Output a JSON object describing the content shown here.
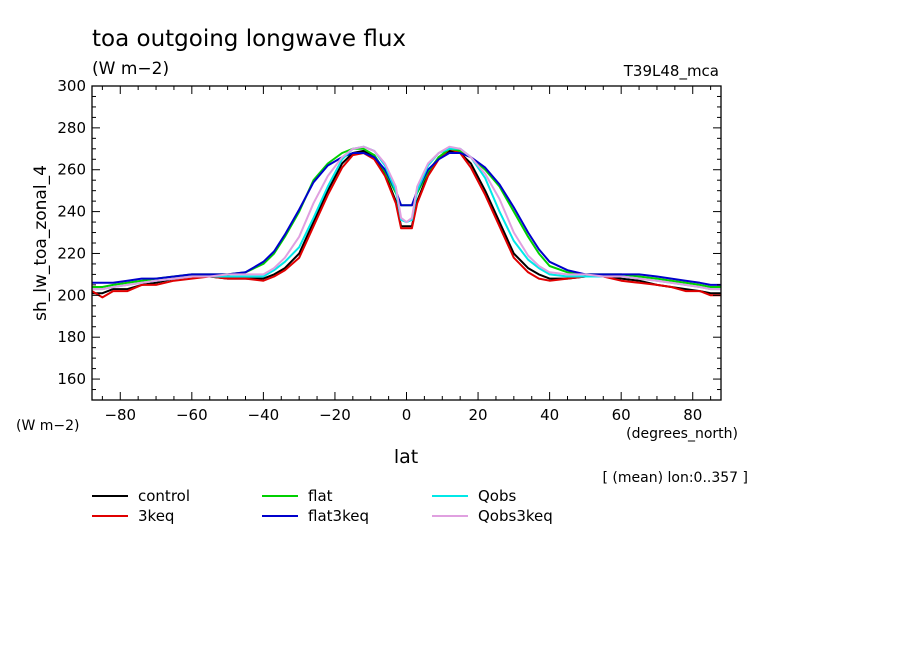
{
  "chart_data": {
    "type": "line",
    "title": "toa outgoing longwave flux",
    "units": "(W m−2)",
    "model_tag": "T39L48_mca",
    "ylabel": "sh_lw_toa_zonal_4",
    "ylabel_units": "(W m−2)",
    "xlabel": "lat",
    "xlabel_units": "(degrees_north)",
    "annotation": "[ (mean) lon:0..357 ]",
    "xlim": [
      -87.9,
      87.9
    ],
    "ylim": [
      150,
      300
    ],
    "x_ticks": [
      -80,
      -60,
      -40,
      -20,
      0,
      20,
      40,
      60,
      80
    ],
    "x_tick_labels": [
      "−80",
      "−60",
      "−40",
      "−20",
      "0",
      "20",
      "40",
      "60",
      "80"
    ],
    "y_ticks": [
      160,
      180,
      200,
      220,
      240,
      260,
      280,
      300
    ],
    "y_tick_labels": [
      "160",
      "180",
      "200",
      "220",
      "240",
      "260",
      "280",
      "300"
    ],
    "grid": false,
    "legend_position": "bottom-left",
    "x": [
      -87.9,
      -85,
      -82,
      -78,
      -74,
      -70,
      -65,
      -60,
      -55,
      -50,
      -45,
      -40,
      -37,
      -34,
      -30,
      -26,
      -22,
      -18,
      -15,
      -12,
      -9,
      -6,
      -3,
      -1.5,
      0,
      1.5,
      3,
      6,
      9,
      12,
      15,
      18,
      22,
      26,
      30,
      34,
      37,
      40,
      45,
      50,
      55,
      60,
      65,
      70,
      74,
      78,
      82,
      85,
      87.9
    ],
    "series": [
      {
        "name": "control",
        "color": "#000000",
        "values": [
          201,
          201,
          203,
          203,
          205,
          206,
          208,
          209,
          209,
          208,
          208,
          208,
          210,
          213,
          220,
          235,
          250,
          263,
          268,
          269,
          266,
          258,
          245,
          233,
          233,
          233,
          245,
          258,
          266,
          269,
          268,
          263,
          250,
          235,
          220,
          213,
          210,
          208,
          208,
          209,
          209,
          208,
          207,
          205,
          204,
          203,
          202,
          201,
          201
        ]
      },
      {
        "name": "3keq",
        "color": "#e00000",
        "values": [
          202,
          199,
          202,
          202,
          205,
          205,
          207,
          208,
          209,
          208,
          208,
          207,
          209,
          212,
          218,
          233,
          248,
          261,
          267,
          268,
          265,
          257,
          244,
          232,
          232,
          232,
          244,
          257,
          265,
          270,
          268,
          261,
          248,
          233,
          218,
          211,
          208,
          207,
          208,
          209,
          209,
          207,
          206,
          205,
          204,
          202,
          202,
          200,
          200
        ]
      },
      {
        "name": "flat",
        "color": "#00d000",
        "values": [
          204,
          204,
          205,
          206,
          207,
          208,
          209,
          210,
          210,
          210,
          211,
          215,
          220,
          228,
          240,
          255,
          263,
          268,
          270,
          270,
          267,
          259,
          249,
          243,
          243,
          243,
          249,
          259,
          266,
          270,
          269,
          266,
          260,
          252,
          240,
          228,
          220,
          214,
          211,
          210,
          210,
          210,
          209,
          208,
          207,
          206,
          205,
          204,
          204
        ]
      },
      {
        "name": "flat3keq",
        "color": "#0000cc",
        "values": [
          206,
          206,
          206,
          207,
          208,
          208,
          209,
          210,
          210,
          210,
          211,
          216,
          221,
          229,
          241,
          254,
          262,
          266,
          268,
          268,
          266,
          260,
          250,
          243,
          243,
          243,
          250,
          260,
          265,
          268,
          268,
          266,
          261,
          253,
          242,
          230,
          222,
          216,
          212,
          210,
          210,
          210,
          210,
          209,
          208,
          207,
          206,
          205,
          205
        ]
      },
      {
        "name": "Qobs",
        "color": "#00e8e8",
        "values": [
          203,
          203,
          204,
          205,
          206,
          207,
          208,
          209,
          209,
          209,
          209,
          209,
          212,
          216,
          223,
          237,
          252,
          265,
          270,
          271,
          269,
          262,
          250,
          236,
          235,
          236,
          250,
          262,
          268,
          270,
          270,
          266,
          256,
          240,
          226,
          217,
          213,
          210,
          209,
          209,
          209,
          209,
          208,
          207,
          206,
          205,
          204,
          203,
          203
        ]
      },
      {
        "name": "Qobs3keq",
        "color": "#e0a0e0",
        "values": [
          203,
          203,
          204,
          205,
          206,
          207,
          208,
          209,
          209,
          210,
          210,
          210,
          213,
          218,
          228,
          244,
          257,
          266,
          270,
          271,
          269,
          263,
          252,
          237,
          235,
          237,
          252,
          263,
          268,
          271,
          270,
          266,
          258,
          246,
          230,
          219,
          214,
          211,
          210,
          210,
          209,
          209,
          208,
          207,
          206,
          205,
          204,
          203,
          203
        ]
      }
    ]
  }
}
